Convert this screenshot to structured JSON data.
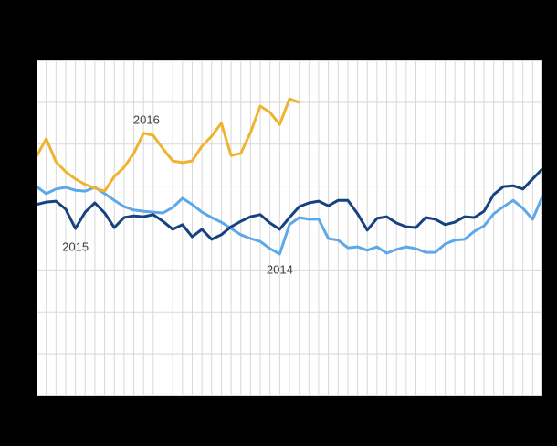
{
  "canvas": {
    "background_color": "#000000",
    "plot_background_color": "#ffffff",
    "gridline_color": "#d8d8d8",
    "label_color": "#3d3d3d"
  },
  "chart_data": {
    "type": "line",
    "title": "",
    "xlabel": "",
    "ylabel": "",
    "x_unit": "week",
    "x": [
      1,
      2,
      3,
      4,
      5,
      6,
      7,
      8,
      9,
      10,
      11,
      12,
      13,
      14,
      15,
      16,
      17,
      18,
      19,
      20,
      21,
      22,
      23,
      24,
      25,
      26,
      27,
      28,
      29,
      30,
      31,
      32,
      33,
      34,
      35,
      36,
      37,
      38,
      39,
      40,
      41,
      42,
      43,
      44,
      45,
      46,
      47,
      48,
      49,
      50,
      51,
      52,
      53
    ],
    "xlim": [
      1,
      53
    ],
    "ylim": [
      0,
      8
    ],
    "y_unit": "gridline-units (axis tick labels not visible in image)",
    "grid": true,
    "legend": "none (series labeled by in-plot text annotations)",
    "series": [
      {
        "name": "2014",
        "color": "#5fa8e8",
        "values": [
          4.99,
          4.82,
          4.93,
          4.97,
          4.9,
          4.88,
          4.97,
          4.82,
          4.66,
          4.51,
          4.43,
          4.4,
          4.38,
          4.36,
          4.49,
          4.71,
          4.56,
          4.38,
          4.25,
          4.14,
          3.99,
          3.84,
          3.75,
          3.68,
          3.51,
          3.38,
          4.08,
          4.25,
          4.21,
          4.21,
          3.75,
          3.71,
          3.53,
          3.55,
          3.47,
          3.55,
          3.4,
          3.49,
          3.55,
          3.51,
          3.42,
          3.42,
          3.62,
          3.71,
          3.73,
          3.92,
          4.05,
          4.34,
          4.51,
          4.66,
          4.47,
          4.21,
          4.75
        ]
      },
      {
        "name": "2015",
        "color": "#164280",
        "values": [
          4.56,
          4.62,
          4.64,
          4.45,
          3.99,
          4.38,
          4.6,
          4.36,
          4.01,
          4.25,
          4.29,
          4.27,
          4.32,
          4.16,
          3.97,
          4.08,
          3.79,
          3.97,
          3.73,
          3.84,
          4.03,
          4.16,
          4.27,
          4.32,
          4.12,
          3.97,
          4.25,
          4.51,
          4.6,
          4.64,
          4.53,
          4.66,
          4.66,
          4.34,
          3.95,
          4.23,
          4.27,
          4.12,
          4.03,
          4.01,
          4.25,
          4.21,
          4.08,
          4.14,
          4.27,
          4.25,
          4.4,
          4.8,
          4.99,
          5.01,
          4.93,
          5.17,
          5.41
        ]
      },
      {
        "name": "2016",
        "color": "#eeb430",
        "values": [
          5.71,
          6.13,
          5.58,
          5.34,
          5.17,
          5.04,
          4.95,
          4.88,
          5.23,
          5.45,
          5.78,
          6.26,
          6.21,
          5.89,
          5.6,
          5.56,
          5.6,
          5.95,
          6.19,
          6.5,
          5.73,
          5.78,
          6.28,
          6.91,
          6.76,
          6.47,
          7.08,
          7.0
        ]
      }
    ],
    "annotations": [
      {
        "text": "2016",
        "week": 12.3,
        "value": 6.58
      },
      {
        "text": "2015",
        "week": 5.0,
        "value": 3.55
      },
      {
        "text": "2014",
        "week": 26.0,
        "value": 3.01
      }
    ]
  }
}
